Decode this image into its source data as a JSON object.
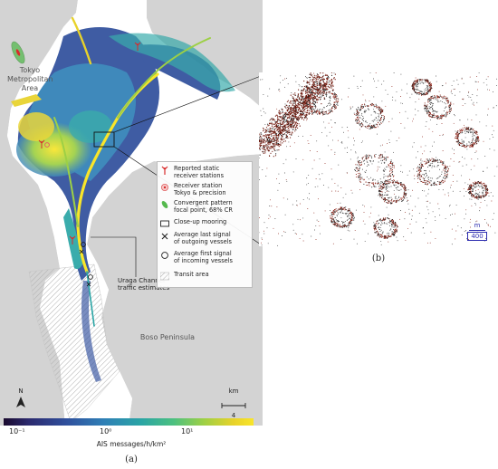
{
  "map": {
    "labels": {
      "tokyo_line1": "Tokyo",
      "tokyo_line2": "Metropolitan",
      "tokyo_line3": "Area",
      "boso": "Boso Peninsula"
    },
    "uraga_label": {
      "line1": "Uraga Channel",
      "line2": "traffic estimates"
    },
    "north_label": "N",
    "scale": {
      "unit": "km",
      "value": "4"
    }
  },
  "legend": {
    "items": [
      {
        "key": "static-receivers",
        "lines": [
          "Reported static",
          "receiver stations"
        ],
        "symbol": "antenna-icon",
        "color": "#d92b2b"
      },
      {
        "key": "receiver-tokyo",
        "lines": [
          "Receiver station",
          "Tokyo & precision"
        ],
        "symbol": "target-icon",
        "color": "#e06060"
      },
      {
        "key": "convergent",
        "lines": [
          "Convergent pattern",
          "focal point, 68% CR"
        ],
        "symbol": "ellipse-icon",
        "color": "#55b94e"
      },
      {
        "key": "close-up",
        "lines": [
          "Close-up mooring"
        ],
        "symbol": "rectangle-icon",
        "color": "#222222"
      },
      {
        "key": "outgoing",
        "lines": [
          "Average last signal",
          "of outgoing vessels"
        ],
        "symbol": "cross-icon",
        "color": "#222222"
      },
      {
        "key": "incoming",
        "lines": [
          "Average first signal",
          "of incoming vessels"
        ],
        "symbol": "circle-icon",
        "color": "#222222"
      },
      {
        "key": "transit",
        "lines": [
          "Transit area"
        ],
        "symbol": "hatch-icon",
        "color": "#999999"
      }
    ]
  },
  "colorbar": {
    "ticks": [
      "10⁻¹",
      "10⁰",
      "10¹"
    ],
    "label": "AIS messages/h/km²"
  },
  "panels": {
    "a": "(a)",
    "b": "(b)"
  },
  "closeup": {
    "scale_unit": "m",
    "scale_value": "400"
  }
}
